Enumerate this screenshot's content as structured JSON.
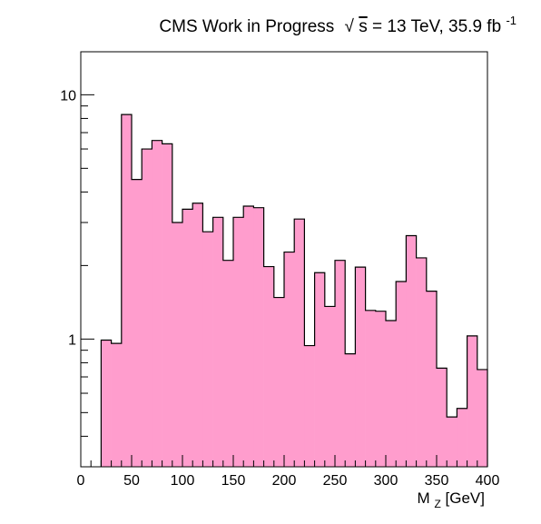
{
  "chart_data": {
    "type": "bar",
    "title": {
      "prefix": "CMS Work in Progress",
      "sqrt_symbol": "√",
      "energy_var": "s",
      "energy_text": " = 13 TeV, 35.9 fb",
      "lumi_superscript": "-1"
    },
    "xlabel": {
      "base": "M",
      "subscript": "Z",
      "unit": " [GeV]"
    },
    "ylabel": "",
    "xlim": [
      0,
      400
    ],
    "ylim": [
      0.3,
      15.0
    ],
    "y_log_scale": true,
    "bin_width": 10,
    "bin_edges_start": 20,
    "values": [
      0.99,
      0.96,
      8.3,
      4.5,
      6.0,
      6.5,
      6.3,
      3.0,
      3.4,
      3.6,
      2.75,
      3.15,
      2.1,
      3.15,
      3.5,
      3.45,
      1.98,
      1.48,
      2.27,
      3.1,
      0.94,
      1.87,
      1.36,
      2.1,
      0.87,
      1.97,
      1.31,
      1.3,
      1.19,
      1.72,
      2.65,
      2.15,
      1.57,
      0.76,
      0.48,
      0.52,
      1.03,
      0.75
    ],
    "x_ticks": [
      "0",
      "50",
      "100",
      "150",
      "200",
      "250",
      "300",
      "350",
      "400"
    ],
    "y_ticks": [
      "1",
      "10"
    ],
    "fill_color": "#ff9dcd",
    "line_color": "#000000",
    "grid": false,
    "legend": "none"
  }
}
